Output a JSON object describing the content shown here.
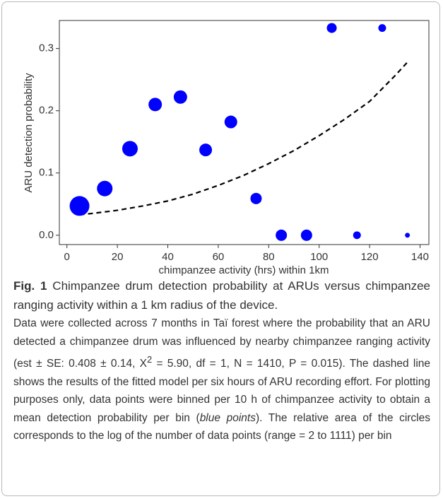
{
  "chart_data": {
    "type": "scatter",
    "xlabel": "chimpanzee activity (hrs) within 1km",
    "ylabel": "ARU detection probability",
    "xlim": [
      -3,
      143.5
    ],
    "ylim": [
      -0.015,
      0.345
    ],
    "xticks": [
      0,
      20,
      40,
      60,
      80,
      100,
      120,
      140
    ],
    "yticks": [
      {
        "value": 0,
        "label": "0.0"
      },
      0.1,
      0.2,
      0.3
    ],
    "points": {
      "color": "#0000ff",
      "x": [
        5,
        15,
        25,
        35,
        45,
        55,
        65,
        75,
        85,
        95,
        105,
        115,
        125,
        135
      ],
      "values": [
        0.047,
        0.075,
        0.139,
        0.21,
        0.222,
        0.137,
        0.182,
        0.059,
        0,
        0,
        0.333,
        0,
        0.333,
        0
      ],
      "sizes": [
        196,
        121,
        121,
        90,
        90,
        81,
        81,
        64,
        64,
        64,
        49,
        30,
        30,
        12
      ]
    },
    "fit": {
      "color": "#000000",
      "dashed": true,
      "x": [
        5,
        10,
        20,
        30,
        40,
        50,
        60,
        70,
        80,
        90,
        100,
        110,
        120,
        130,
        135
      ],
      "values": [
        0.033,
        0.035,
        0.04,
        0.047,
        0.055,
        0.066,
        0.08,
        0.096,
        0.115,
        0.136,
        0.16,
        0.186,
        0.215,
        0.256,
        0.278
      ]
    }
  },
  "caption": {
    "label": "Fig. 1",
    "lead": "Chimpanzee drum detection probability at ARUs versus chimpanzee ranging activity within a 1 km radius of the device.",
    "body_1": "Data were collected across 7 months in Taï forest where the probability that an ARU detected a chimpanzee drum was influenced by nearby chimpanzee ranging activity (est ± SE: 0.408 ± 0.14, X",
    "body_sup": "2",
    "body_2": "= 5.90, df = 1, N = 1410, P = 0.015). The dashed line shows the results of the fitted model per six hours of ARU recording effort. For plotting purposes only, data points were binned per 10 h of chimpanzee activity to obtain a mean detection probability per bin (",
    "body_italic": "blue points",
    "body_3": "). The relative area of the circles corresponds to the log of the number of data points (range = 2 to 1111) per bin"
  }
}
